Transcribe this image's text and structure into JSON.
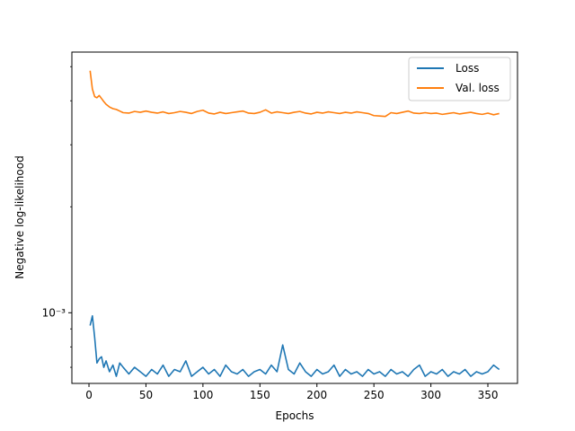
{
  "chart_data": {
    "type": "line",
    "title": "",
    "xlabel": "Epochs",
    "ylabel": "Negative log-likelihood",
    "xlim": [
      -15,
      376
    ],
    "ylim": [
      0.00063,
      0.0055
    ],
    "yscale": "log",
    "grid": false,
    "legend_position": "top-right",
    "x_ticks": [
      0,
      50,
      100,
      150,
      200,
      250,
      300,
      350
    ],
    "x_tick_labels": [
      "0",
      "50",
      "100",
      "150",
      "200",
      "250",
      "300",
      "350"
    ],
    "y_ticks": [
      0.001
    ],
    "y_tick_labels": [
      "10⁻³"
    ],
    "series": [
      {
        "name": "Loss",
        "color": "#1f77b4",
        "x": [
          1,
          3,
          5,
          7,
          9,
          11,
          13,
          15,
          18,
          21,
          24,
          27,
          30,
          35,
          40,
          45,
          50,
          55,
          60,
          65,
          70,
          75,
          80,
          85,
          90,
          95,
          100,
          105,
          110,
          115,
          120,
          125,
          130,
          135,
          140,
          145,
          150,
          155,
          160,
          165,
          170,
          175,
          180,
          185,
          190,
          195,
          200,
          205,
          210,
          215,
          220,
          225,
          230,
          235,
          240,
          245,
          250,
          255,
          260,
          265,
          270,
          275,
          280,
          285,
          290,
          295,
          300,
          305,
          310,
          315,
          320,
          325,
          330,
          335,
          340,
          345,
          350,
          355,
          360
        ],
        "values": [
          0.00092,
          0.00098,
          0.00085,
          0.00072,
          0.00074,
          0.00075,
          0.0007,
          0.00073,
          0.00068,
          0.00071,
          0.00066,
          0.00072,
          0.0007,
          0.00067,
          0.0007,
          0.00068,
          0.00066,
          0.00069,
          0.00067,
          0.00071,
          0.00066,
          0.00069,
          0.00068,
          0.00073,
          0.00066,
          0.00068,
          0.0007,
          0.00067,
          0.00069,
          0.00066,
          0.00071,
          0.00068,
          0.00067,
          0.00069,
          0.00066,
          0.00068,
          0.00069,
          0.00067,
          0.00071,
          0.00068,
          0.00081,
          0.00069,
          0.00067,
          0.00072,
          0.00068,
          0.00066,
          0.00069,
          0.00067,
          0.00068,
          0.00071,
          0.00066,
          0.00069,
          0.00067,
          0.00068,
          0.00066,
          0.00069,
          0.00067,
          0.00068,
          0.00066,
          0.00069,
          0.00067,
          0.00068,
          0.00066,
          0.00069,
          0.00071,
          0.00066,
          0.00068,
          0.00067,
          0.00069,
          0.00066,
          0.00068,
          0.00067,
          0.00069,
          0.00066,
          0.00068,
          0.00067,
          0.00068,
          0.00071,
          0.00069
        ]
      },
      {
        "name": "Val. loss",
        "color": "#ff7f0e",
        "x": [
          1,
          3,
          5,
          7,
          9,
          11,
          13,
          15,
          18,
          21,
          24,
          27,
          30,
          35,
          40,
          45,
          50,
          55,
          60,
          65,
          70,
          75,
          80,
          85,
          90,
          95,
          100,
          105,
          110,
          115,
          120,
          125,
          130,
          135,
          140,
          145,
          150,
          155,
          160,
          165,
          170,
          175,
          180,
          185,
          190,
          195,
          200,
          205,
          210,
          215,
          220,
          225,
          230,
          235,
          240,
          245,
          250,
          255,
          260,
          265,
          270,
          275,
          280,
          285,
          290,
          295,
          300,
          305,
          310,
          315,
          320,
          325,
          330,
          335,
          340,
          345,
          350,
          355,
          360
        ],
        "values": [
          0.00487,
          0.00432,
          0.00411,
          0.00408,
          0.00414,
          0.00406,
          0.00398,
          0.00391,
          0.00384,
          0.0038,
          0.00378,
          0.00374,
          0.0037,
          0.00369,
          0.00373,
          0.00371,
          0.00374,
          0.00371,
          0.00369,
          0.00372,
          0.00368,
          0.0037,
          0.00373,
          0.00371,
          0.00368,
          0.00373,
          0.00376,
          0.00369,
          0.00367,
          0.00371,
          0.00368,
          0.0037,
          0.00372,
          0.00374,
          0.00369,
          0.00368,
          0.00371,
          0.00377,
          0.00369,
          0.00372,
          0.0037,
          0.00368,
          0.00371,
          0.00373,
          0.00369,
          0.00367,
          0.00371,
          0.00369,
          0.00372,
          0.0037,
          0.00368,
          0.00371,
          0.00369,
          0.00372,
          0.0037,
          0.00368,
          0.00363,
          0.00362,
          0.00361,
          0.0037,
          0.00368,
          0.00371,
          0.00374,
          0.00369,
          0.00368,
          0.0037,
          0.00368,
          0.00369,
          0.00366,
          0.00368,
          0.0037,
          0.00367,
          0.00369,
          0.00371,
          0.00368,
          0.00366,
          0.00369,
          0.00365,
          0.00368
        ]
      }
    ]
  }
}
